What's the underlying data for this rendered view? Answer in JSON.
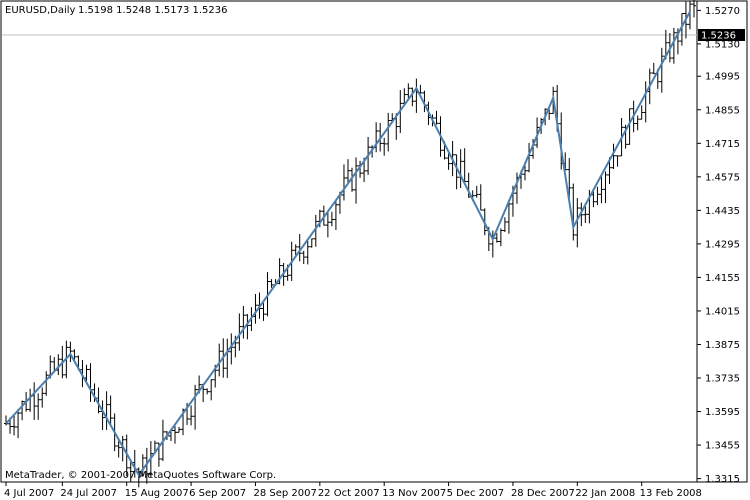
{
  "header": {
    "symbol_label": "EURUSD,Daily",
    "ohlc_text": "1.5198 1.5248 1.5173 1.5236"
  },
  "footer": {
    "copyright": "MetaTrader, © 2001-2007 MetaQuotes Software Corp."
  },
  "colors": {
    "background": "#ffffff",
    "bars": "#000000",
    "zigzag": "#4a7fb0",
    "price_line": "#c0c0c0",
    "price_label_bg": "#000000",
    "price_label_text": "#ffffff"
  },
  "chart_data": {
    "type": "ohlc",
    "title": "EURUSD,Daily",
    "current_price": "1.5236",
    "y_ticks": [
      "1.5270",
      "1.5130",
      "1.4995",
      "1.4855",
      "1.4715",
      "1.4575",
      "1.4435",
      "1.4295",
      "1.4155",
      "1.4015",
      "1.3875",
      "1.3735",
      "1.3595",
      "1.3455",
      "1.3315"
    ],
    "ylim": [
      1.3305,
      1.5305
    ],
    "x_ticks": [
      {
        "label": "4 Jul 2007",
        "index": 0
      },
      {
        "label": "24 Jul 2007",
        "index": 14
      },
      {
        "label": "15 Aug 2007",
        "index": 30
      },
      {
        "label": "6 Sep 2007",
        "index": 46
      },
      {
        "label": "28 Sep 2007",
        "index": 62
      },
      {
        "label": "22 Oct 2007",
        "index": 78
      },
      {
        "label": "13 Nov 2007",
        "index": 94
      },
      {
        "label": "5 Dec 2007",
        "index": 110
      },
      {
        "label": "28 Dec 2007",
        "index": 126
      },
      {
        "label": "22 Jan 2008",
        "index": 142
      },
      {
        "label": "13 Feb 2008",
        "index": 158
      }
    ],
    "bars_count": 172,
    "zigzag": [
      {
        "index": 0,
        "price": 1.3545
      },
      {
        "index": 16,
        "price": 1.3835
      },
      {
        "index": 33,
        "price": 1.333
      },
      {
        "index": 102,
        "price": 1.4945
      },
      {
        "index": 121,
        "price": 1.4315
      },
      {
        "index": 136,
        "price": 1.4905
      },
      {
        "index": 141,
        "price": 1.4365
      },
      {
        "index": 170,
        "price": 1.5265
      }
    ]
  }
}
